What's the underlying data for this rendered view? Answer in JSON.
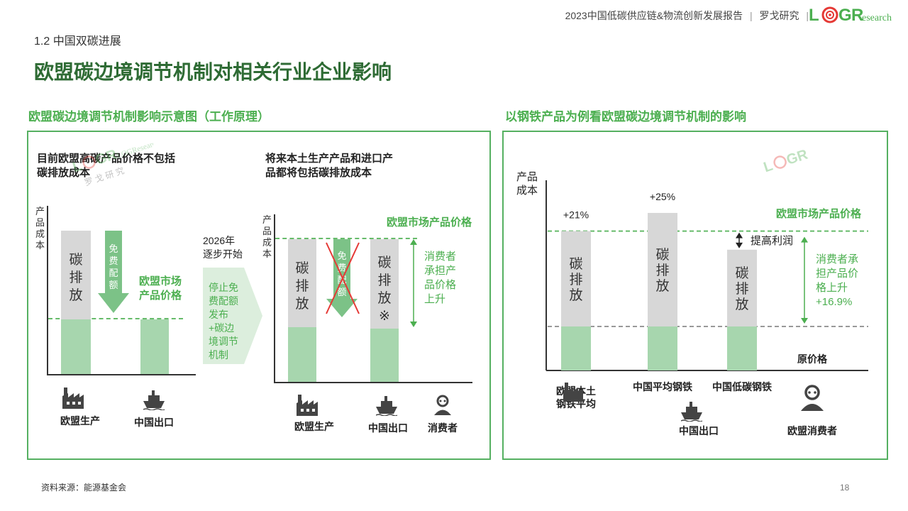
{
  "header": {
    "report_title": "2023中国低碳供应链&物流创新发展报告",
    "org": "罗戈研究",
    "logo_text": "LOGResearch"
  },
  "section": "1.2 中国双碳进展",
  "title": "欧盟碳边境调节机制对相关行业企业影响",
  "left_panel": {
    "title": "欧盟碳边境调节机制影响示意图（工作原理）",
    "note_before": "目前欧盟高碳产品价格不包括\n碳排放成本",
    "note_after": "将来本土生产产品和进口产\n品都将包括碳排放成本",
    "axis_label": "产\n品\n成\n本",
    "carbon_label": "碳\n排\n放",
    "carbon_label_mark": "碳\n排\n放\n※",
    "free_quota": "免\n费\n配\n额",
    "eu_price_short": "欧盟市场\n产品价格",
    "eu_price": "欧盟市场产品价格",
    "year_label": "2026年\n逐步开始",
    "transition_text": "停止免\n费配额\n发布\n+碳边\n境调节\n机制",
    "consumer_note": "消费者\n承担产\n品价格\n上升",
    "categories": {
      "eu_production": "欧盟生产",
      "china_export": "中国出口",
      "consumer": "消费者"
    }
  },
  "right_panel": {
    "title": "以钢铁产品为例看欧盟碳边境调节机制的影响",
    "axis_label": "产品\n成本",
    "eu_price": "欧盟市场产品价格",
    "profit": "提高利润",
    "consumer_note": "消费者承\n担产品价\n格上升\n+16.9%",
    "original_price": "原价格",
    "carbon_label": "碳\n排\n放",
    "consumer": "欧盟消费者",
    "china_export": "中国出口"
  },
  "chart_data": {
    "type": "bar",
    "categories": [
      "欧盟本土\n钢铁平均",
      "中国平均钢铁",
      "中国低碳钢铁"
    ],
    "values": [
      21,
      25,
      16.9
    ],
    "data_labels": [
      "+21%",
      "+25%",
      ""
    ],
    "reference_lines": [
      {
        "name": "欧盟市场产品价格",
        "value": 21
      },
      {
        "name": "原价格",
        "value": 0
      }
    ],
    "xlabel": "",
    "ylabel": "产品成本"
  },
  "footer": {
    "source": "资料来源：能源基金会",
    "page": "18"
  },
  "watermark": {
    "logo": "LOGResearch",
    "cn": "罗 戈 研 究"
  },
  "colors": {
    "accent_green": "#4caf50",
    "title_green": "#2e6b34",
    "bar_grey": "#d7d7d7",
    "bar_green": "#a7d6ae",
    "cross_red": "#e53935"
  }
}
